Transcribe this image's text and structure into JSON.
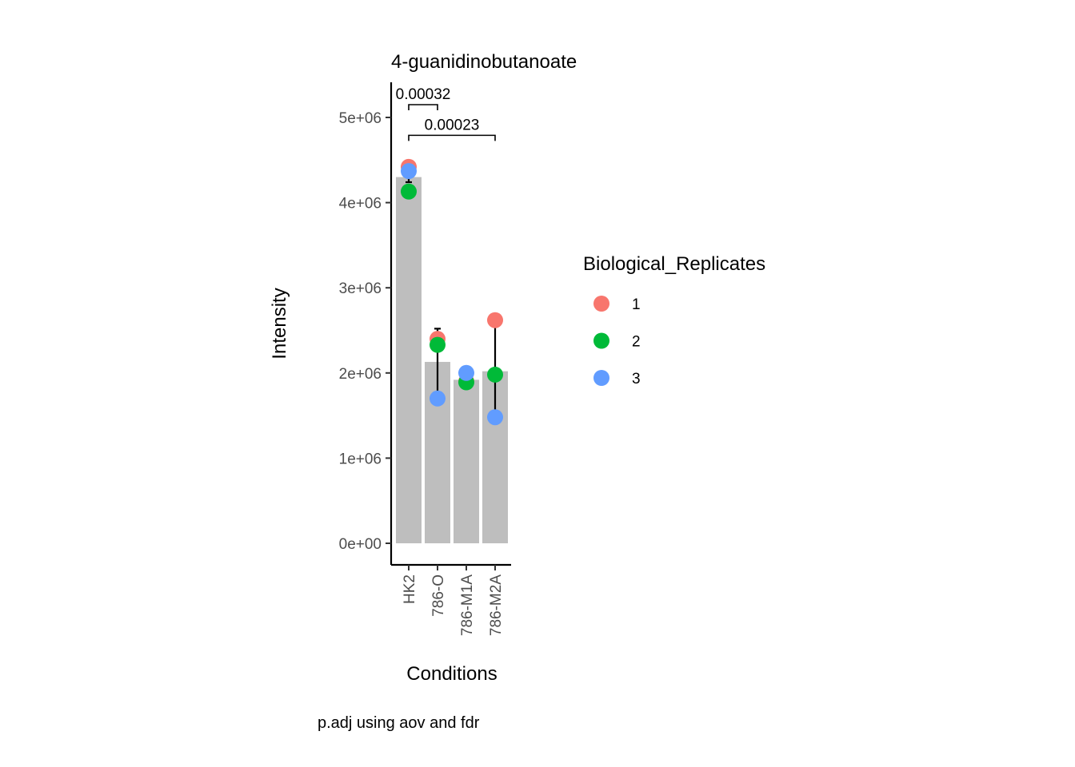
{
  "chart_data": {
    "type": "bar",
    "title": "4-guanidinobutanoate",
    "xlabel": "Conditions",
    "ylabel": "Intensity",
    "caption": "p.adj using  aov and fdr",
    "categories": [
      "HK2",
      "786-O",
      "786-M1A",
      "786-M2A"
    ],
    "bar_values": [
      4300000,
      2130000,
      1920000,
      2020000
    ],
    "error_bars": [
      {
        "low": 4240000,
        "high": 4360000
      },
      {
        "low": 1740000,
        "high": 2520000
      },
      {
        "low": 1860000,
        "high": 1980000
      },
      {
        "low": 1470000,
        "high": 2580000
      }
    ],
    "ylim": [
      -500000,
      5400000
    ],
    "yticks": [
      0,
      1000000,
      2000000,
      3000000,
      4000000,
      5000000
    ],
    "ytick_labels": [
      "0e+00",
      "1e+06",
      "2e+06",
      "3e+06",
      "4e+06",
      "5e+06"
    ],
    "bar_color": "#bebebe",
    "series": [
      {
        "name": "1",
        "color": "#F8766D",
        "values": [
          4420000,
          2400000,
          1900000,
          2620000
        ]
      },
      {
        "name": "2",
        "color": "#00BA38",
        "values": [
          4130000,
          2330000,
          1890000,
          1980000
        ]
      },
      {
        "name": "3",
        "color": "#619CFF",
        "values": [
          4370000,
          1700000,
          2000000,
          1480000
        ]
      }
    ],
    "legend": {
      "title": "Biological_Replicates",
      "placement": "right"
    },
    "comparisons": [
      {
        "from": "HK2",
        "to": "786-O",
        "label": "0.00032",
        "y": 5150000
      },
      {
        "from": "HK2",
        "to": "786-M2A",
        "label": "0.00023",
        "y": 4790000
      }
    ]
  }
}
